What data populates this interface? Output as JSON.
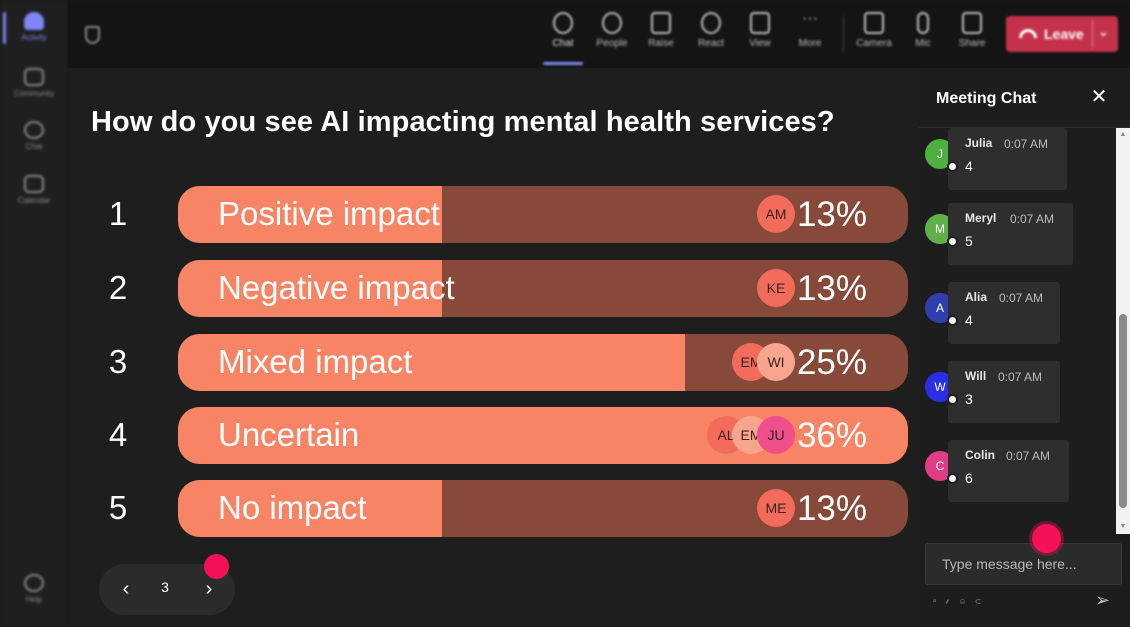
{
  "rail": {
    "items": [
      {
        "label": "Activity"
      },
      {
        "label": "Community"
      },
      {
        "label": "Chat"
      },
      {
        "label": "Calendar"
      }
    ],
    "help_label": "Help"
  },
  "toolbar": {
    "buttons": [
      {
        "label": "Chat",
        "icon": "chat-icon"
      },
      {
        "label": "People",
        "icon": "people-icon"
      },
      {
        "label": "Raise",
        "icon": "raise-hand-icon"
      },
      {
        "label": "React",
        "icon": "react-icon"
      },
      {
        "label": "View",
        "icon": "view-icon"
      },
      {
        "label": "More",
        "icon": "more-icon"
      },
      {
        "label": "Camera",
        "icon": "camera-icon"
      },
      {
        "label": "Mic",
        "icon": "mic-icon"
      },
      {
        "label": "Share",
        "icon": "share-icon"
      }
    ],
    "leave_label": "Leave"
  },
  "poll": {
    "question": "How do you see AI impacting mental health services?",
    "options": [
      {
        "number": "1",
        "label": "Positive impact",
        "percent_text": "13%",
        "percent": 13,
        "avatars": [
          {
            "initials": "AM",
            "color": "#f26b5b"
          }
        ]
      },
      {
        "number": "2",
        "label": "Negative impact",
        "percent_text": "13%",
        "percent": 13,
        "avatars": [
          {
            "initials": "KE",
            "color": "#f26b5b"
          }
        ]
      },
      {
        "number": "3",
        "label": "Mixed impact",
        "percent_text": "25%",
        "percent": 25,
        "avatars": [
          {
            "initials": "EM",
            "color": "#f26b5b"
          },
          {
            "initials": "WI",
            "color": "#f8a58f"
          }
        ]
      },
      {
        "number": "4",
        "label": "Uncertain",
        "percent_text": "36%",
        "percent": 36,
        "avatars": [
          {
            "initials": "AL",
            "color": "#f26b5b"
          },
          {
            "initials": "EM",
            "color": "#f8a58f"
          },
          {
            "initials": "JU",
            "color": "#ef4f8a"
          }
        ]
      },
      {
        "number": "5",
        "label": "No impact",
        "percent_text": "13%",
        "percent": 13,
        "avatars": [
          {
            "initials": "ME",
            "color": "#f26b5b"
          }
        ]
      }
    ],
    "pager": {
      "page": "3",
      "prev": "‹",
      "next": "›"
    }
  },
  "chat": {
    "title": "Meeting Chat",
    "close": "✕",
    "messages": [
      {
        "initial": "J",
        "name": "Julia",
        "time": "0:07 AM",
        "text": "4",
        "color": "#4caf3f"
      },
      {
        "initial": "M",
        "name": "Meryl",
        "time": "0:07 AM",
        "text": "5",
        "color": "#5fb04b"
      },
      {
        "initial": "A",
        "name": "Alia",
        "time": "0:07 AM",
        "text": "4",
        "color": "#2f3fae"
      },
      {
        "initial": "W",
        "name": "Will",
        "time": "0:07 AM",
        "text": "3",
        "color": "#2a2ee6"
      },
      {
        "initial": "C",
        "name": "Colin",
        "time": "0:07 AM",
        "text": "6",
        "color": "#e13c86"
      }
    ],
    "compose_placeholder": "Type message here...",
    "send": "➢"
  },
  "colors": {
    "bar_fill": "#f68465",
    "bar_track": "#874939",
    "leave": "#c4314b",
    "accent": "#7f85f5",
    "cursor": "#f5115a"
  }
}
